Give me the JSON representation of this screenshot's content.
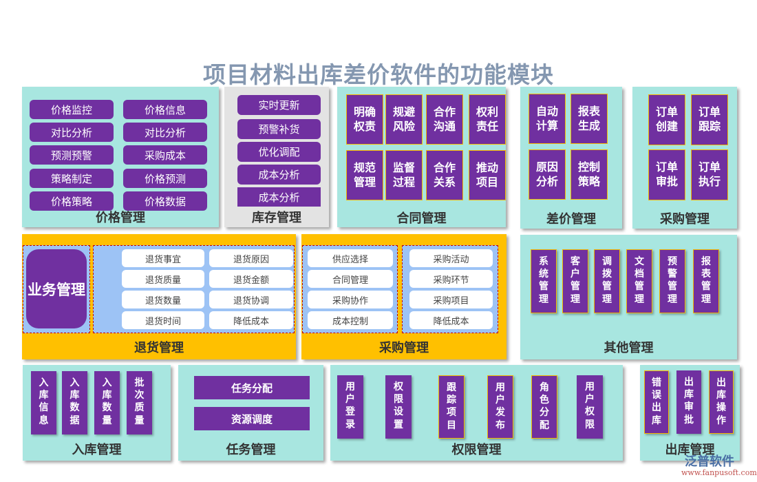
{
  "title": "项目材料出库差价软件的功能模块",
  "price": {
    "label": "价格管理",
    "items": [
      "价格监控",
      "价格信息",
      "对比分析",
      "对比分析",
      "预测预警",
      "采购成本",
      "策略制定",
      "价格预测",
      "价格策略",
      "价格数据"
    ]
  },
  "inventory": {
    "label": "库存管理",
    "items": [
      "实时更新",
      "预警补货",
      "优化调配",
      "成本分析",
      "成本分析"
    ]
  },
  "contract": {
    "label": "合同管理",
    "items": [
      "明确权责",
      "规避风险",
      "合作沟通",
      "权利责任",
      "规范管理",
      "监督过程",
      "合作关系",
      "推动项目"
    ]
  },
  "diff": {
    "label": "差价管理",
    "items": [
      "自动计算",
      "报表生成",
      "原因分析",
      "控制策略"
    ]
  },
  "purchase_top": {
    "label": "采购管理",
    "items": [
      "订单创建",
      "订单跟踪",
      "订单审批",
      "订单执行"
    ]
  },
  "business": {
    "label": "业务管理"
  },
  "returns": {
    "label": "退货管理",
    "items": [
      "退货事宜",
      "退货原因",
      "退货质量",
      "退货金额",
      "退货数量",
      "退货协调",
      "退货时间",
      "降低成本"
    ]
  },
  "purchase_mid": {
    "label": "采购管理",
    "left": [
      "供应选择",
      "合同管理",
      "采购协作",
      "成本控制"
    ],
    "right": [
      "采购活动",
      "采购环节",
      "采购项目",
      "降低成本"
    ]
  },
  "other": {
    "label": "其他管理",
    "items": [
      "系统管理",
      "客户管理",
      "调拨管理",
      "文档管理",
      "预警管理",
      "报表管理"
    ]
  },
  "inbound": {
    "label": "入库管理",
    "items": [
      "入库信息",
      "入库数据",
      "入库数量",
      "批次质量"
    ]
  },
  "task": {
    "label": "任务管理",
    "items": [
      "任务分配",
      "资源调度"
    ]
  },
  "permission": {
    "label": "权限管理",
    "items": [
      "用户登录",
      "权限设置",
      "跟踪项目",
      "用户发布",
      "角色分配",
      "用户权限"
    ]
  },
  "outbound": {
    "label": "出库管理",
    "items": [
      "错误出库",
      "出库审批",
      "出库操作"
    ]
  },
  "watermark": {
    "brand": "泛普软件",
    "url": "www.fanpusoft.com"
  },
  "colors": {
    "purple": "#7030a0",
    "teal": "#a8e6e0",
    "orange": "#ffc000",
    "title": "#8497b0"
  }
}
